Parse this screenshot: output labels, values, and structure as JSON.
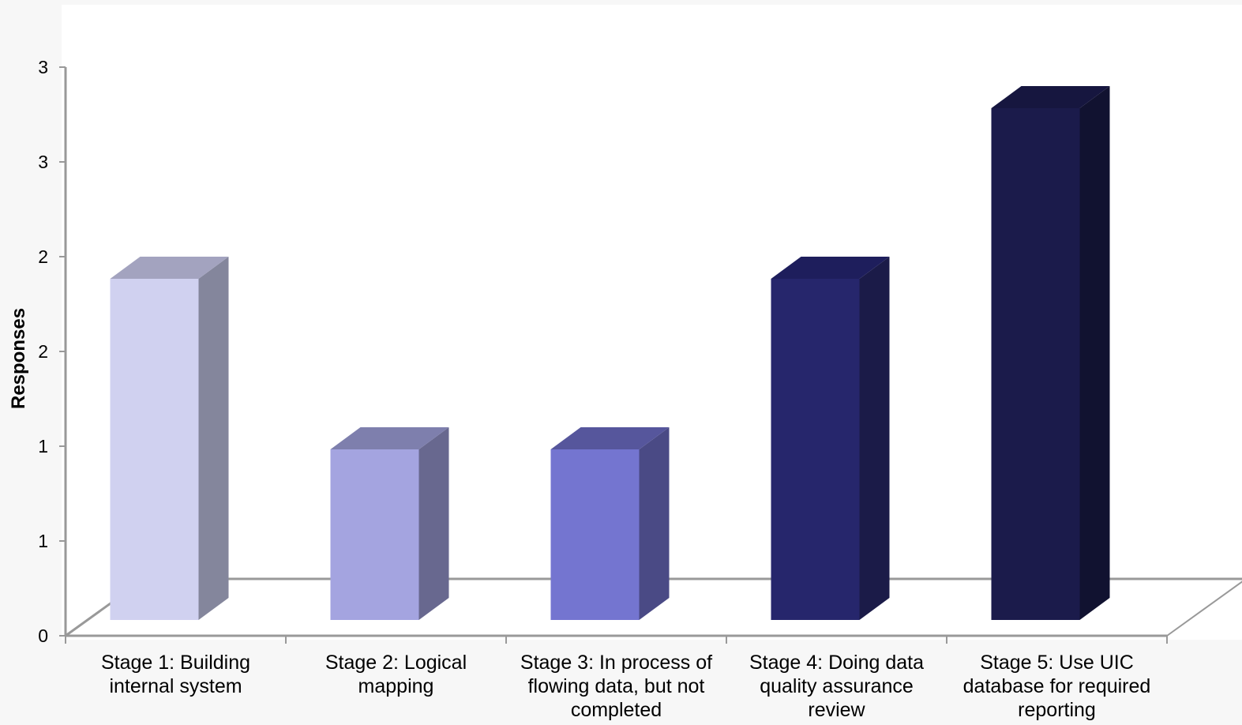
{
  "chart_data": {
    "type": "bar",
    "title": "",
    "xlabel": "",
    "ylabel": "Responses",
    "categories": [
      "Stage 1: Building internal system",
      "Stage 2: Logical mapping",
      "Stage 3: In process of flowing data, but not completed",
      "Stage 4: Doing data quality assurance review",
      "Stage 5: Use UIC database for required reporting"
    ],
    "values": [
      2,
      1,
      1,
      2,
      3
    ],
    "ylim": [
      0,
      3
    ],
    "y_tick_values": [
      0,
      0.5,
      1,
      1.5,
      2,
      2.5,
      3
    ],
    "y_tick_labels": [
      "0",
      "1",
      "1",
      "2",
      "2",
      "3",
      "3"
    ],
    "grid": false,
    "legend": "none",
    "three_d": true,
    "colors": {
      "bar_front": [
        "#d0d1f0",
        "#a4a4e0",
        "#7475d0",
        "#26266c",
        "#1b1b4b"
      ],
      "bar_side": [
        "#84869c",
        "#68688f",
        "#4a4a85",
        "#1b1b48",
        "#111230"
      ],
      "bar_top": [
        "#a3a3bf",
        "#7e7fad",
        "#56569c",
        "#1e1e5c",
        "#16163f"
      ],
      "axis": "#999999",
      "plot_background": "#ffffff",
      "page_background": "#f7f7f7"
    }
  }
}
